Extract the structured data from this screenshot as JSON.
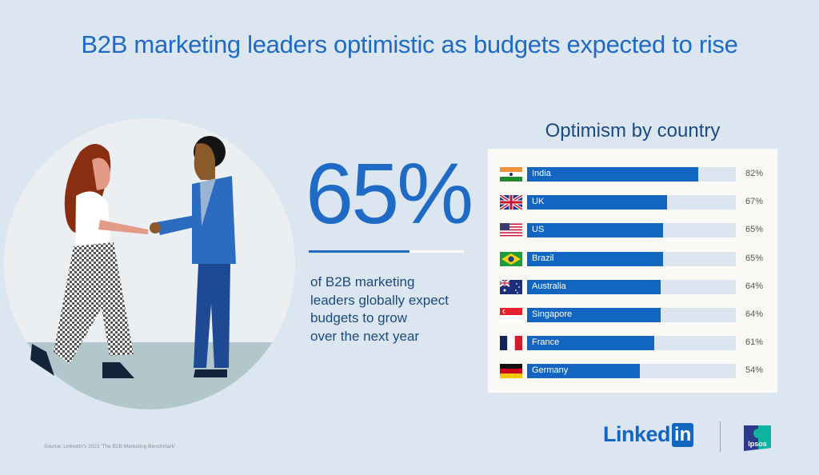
{
  "title": "B2B marketing leaders optimistic as budgets expected to rise",
  "stat": {
    "value": "65%",
    "fraction": 0.65,
    "description_lines": [
      "of B2B marketing",
      "leaders globally expect",
      "budgets to grow",
      "over the next year"
    ]
  },
  "source": "Source: LinkedIn's 2023 'The B2B Marketing Benchmark'",
  "logos": {
    "linkedin_text": "Linked",
    "linkedin_box": "in",
    "ipsos": "Ipsos"
  },
  "colors": {
    "accent": "#1266c2",
    "background": "#dce6f1",
    "panel": "#fbf9f6"
  },
  "chart_data": {
    "type": "bar",
    "orientation": "horizontal",
    "title": "Optimism by country",
    "categories": [
      "India",
      "UK",
      "US",
      "Brazil",
      "Australia",
      "Singapore",
      "France",
      "Germany"
    ],
    "values": [
      82,
      67,
      65,
      65,
      64,
      64,
      61,
      54
    ],
    "value_labels": [
      "82%",
      "67%",
      "65%",
      "65%",
      "64%",
      "64%",
      "61%",
      "54%"
    ],
    "flags": [
      "india-flag",
      "uk-flag",
      "us-flag",
      "brazil-flag",
      "australia-flag",
      "singapore-flag",
      "france-flag",
      "germany-flag"
    ],
    "xlim": [
      0,
      100
    ],
    "unit": "%",
    "grid": false,
    "legend": "none"
  }
}
